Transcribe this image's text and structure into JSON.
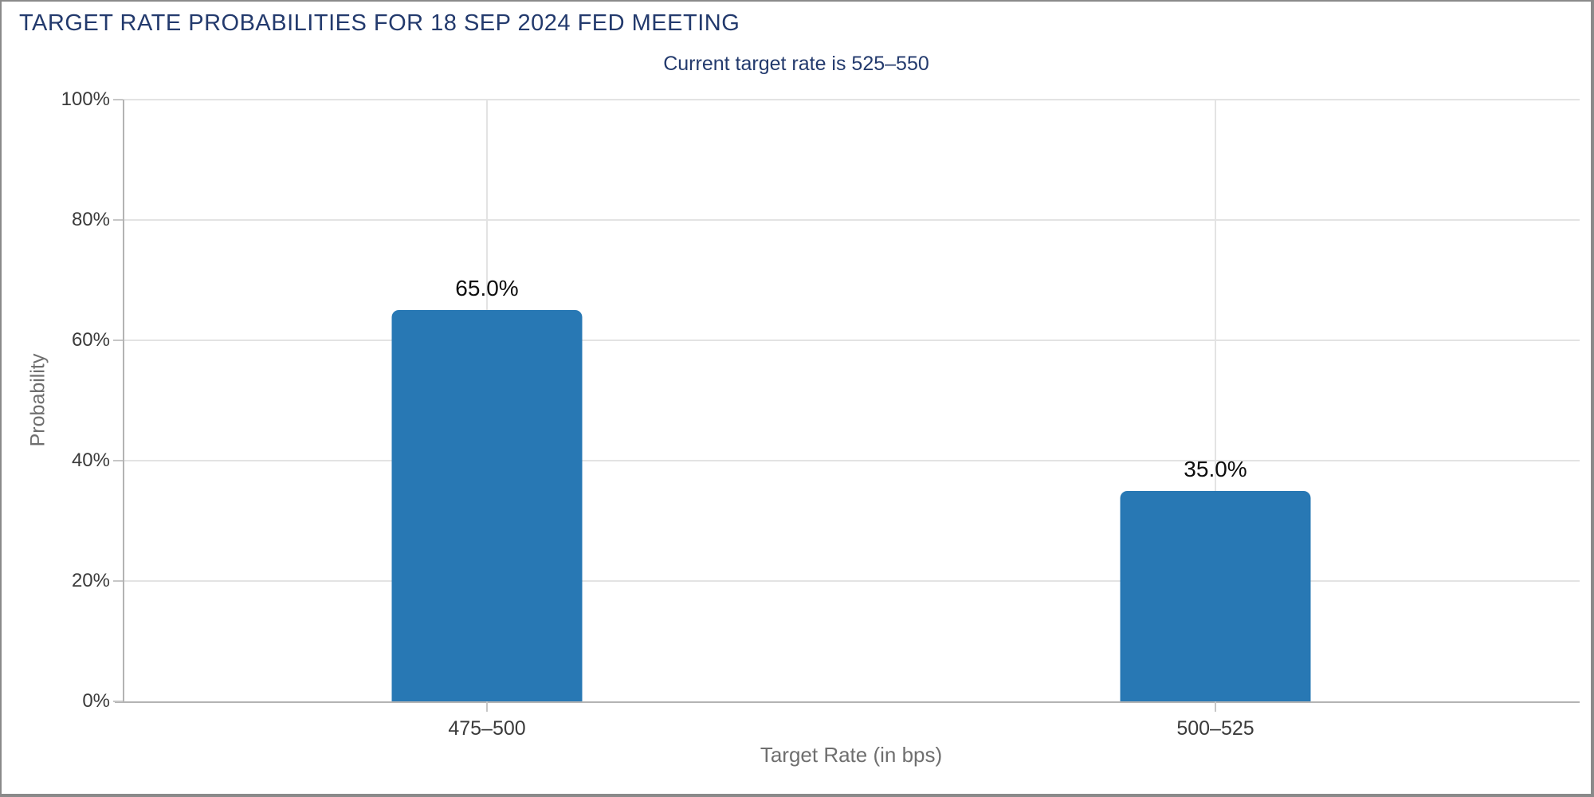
{
  "colors": {
    "navy": "#233a6d",
    "bar": "#2878b4",
    "grid": "#e3e3e3",
    "axis": "#b3b3b3",
    "tick_label": "#3b3b3b",
    "axis_title": "#6f6f6f",
    "value_label": "#0d0d0d",
    "border": "#8a8a8a",
    "background": "#ffffff"
  },
  "chart_data": {
    "type": "bar",
    "title": "TARGET RATE PROBABILITIES FOR 18 SEP 2024 FED MEETING",
    "subtitle": "Current target rate is 525–550",
    "categories": [
      "475–500",
      "500–525"
    ],
    "values": [
      65.0,
      35.0
    ],
    "value_labels": [
      "65.0%",
      "35.0%"
    ],
    "xlabel": "Target Rate (in bps)",
    "ylabel": "Probability",
    "ylim": [
      0,
      100
    ],
    "yticks": [
      0,
      20,
      40,
      60,
      80,
      100
    ],
    "ytick_labels": [
      "0%",
      "20%",
      "40%",
      "60%",
      "80%",
      "100%"
    ],
    "grid": true,
    "legend": false,
    "bar_color": "#2878b4"
  }
}
